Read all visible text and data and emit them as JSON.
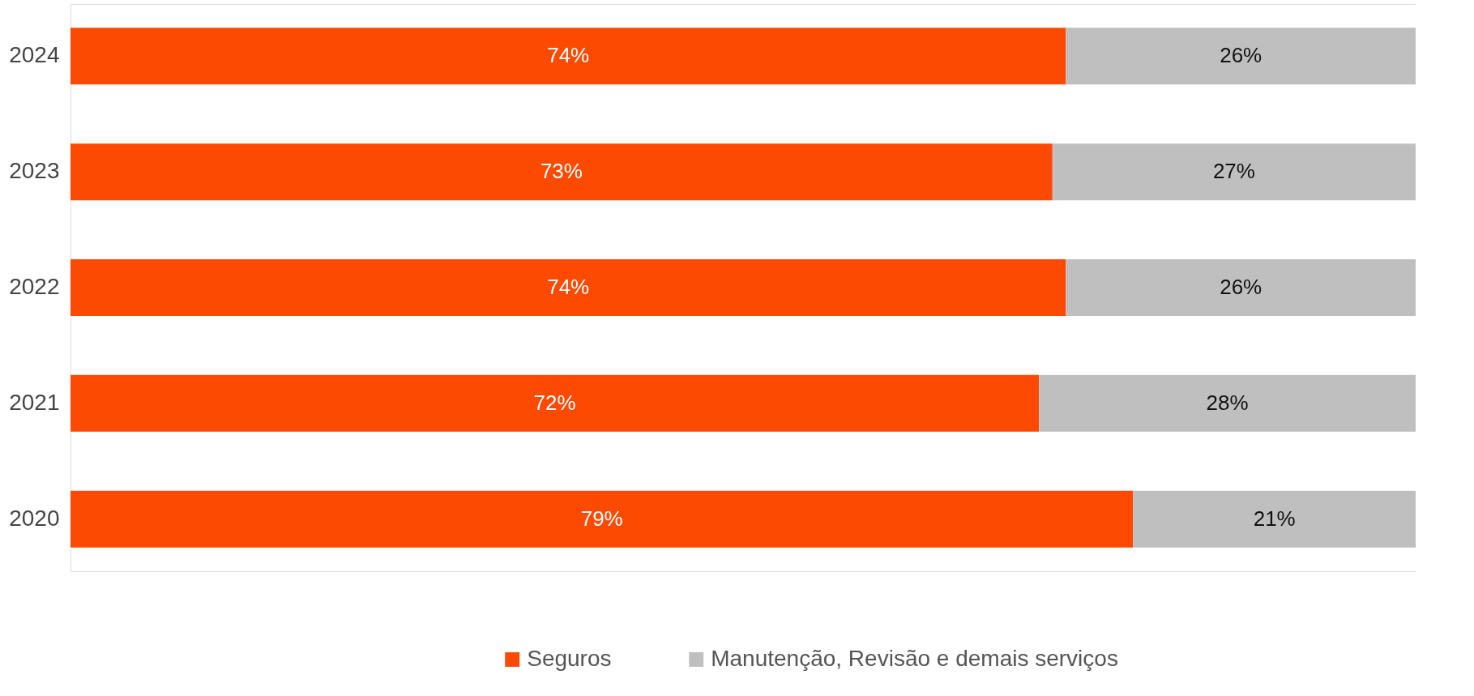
{
  "chart_data": {
    "type": "bar",
    "orientation": "horizontal",
    "stacked": true,
    "categories": [
      "2024",
      "2023",
      "2022",
      "2021",
      "2020"
    ],
    "series": [
      {
        "name": "Seguros",
        "color": "#fc4a02",
        "values": [
          74,
          73,
          74,
          72,
          79
        ],
        "value_labels": [
          "74%",
          "73%",
          "74%",
          "72%",
          "79%"
        ]
      },
      {
        "name": "Manutenção, Revisão e demais serviços",
        "color": "#bfbfbf",
        "values": [
          26,
          27,
          26,
          28,
          21
        ],
        "value_labels": [
          "26%",
          "27%",
          "26%",
          "28%",
          "21%"
        ]
      }
    ],
    "legend": "bottom",
    "tick_labels": "y"
  }
}
